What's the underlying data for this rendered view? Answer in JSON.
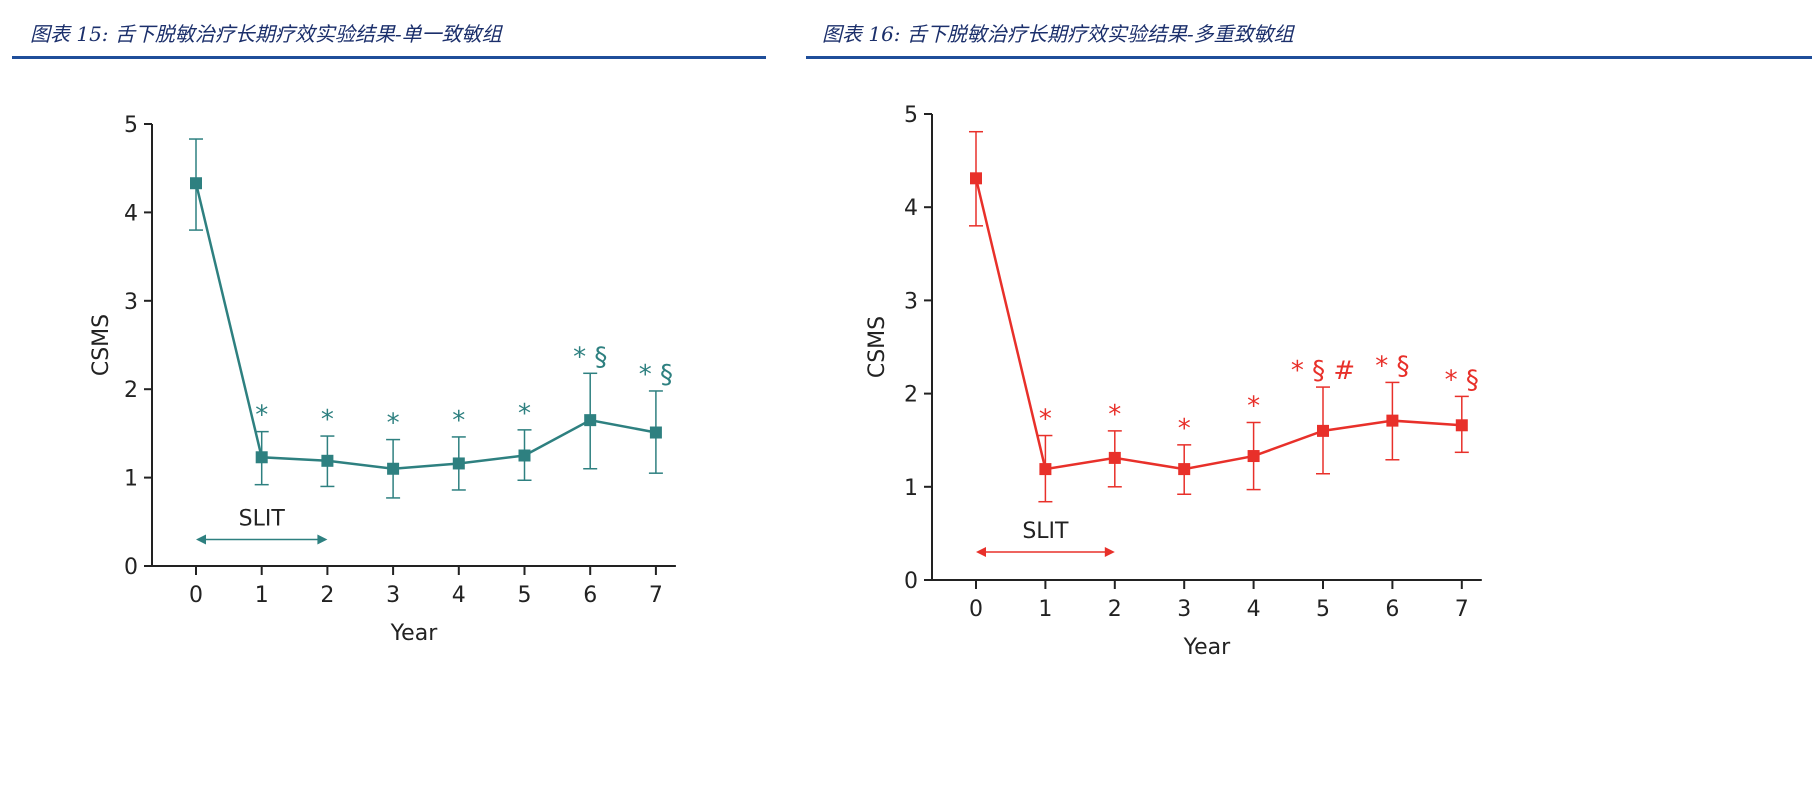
{
  "titles": [
    "图表 15:  舌下脱敏治疗长期疗效实验结果-单一致敏组",
    "图表 16:  舌下脱敏治疗长期疗效实验结果-多重致敏组"
  ],
  "chart_data": [
    {
      "type": "line",
      "title": "",
      "xlabel": "Year",
      "ylabel": "CSMS",
      "x": [
        0,
        1,
        2,
        3,
        4,
        5,
        6,
        7
      ],
      "xlim": [
        0,
        7
      ],
      "ylim": [
        0,
        5
      ],
      "yticks": [
        0,
        1,
        2,
        3,
        4,
        5
      ],
      "color": "#2e8080",
      "series": [
        {
          "values": [
            4.33,
            1.23,
            1.19,
            1.1,
            1.16,
            1.25,
            1.65,
            1.51
          ],
          "err_low": [
            3.8,
            0.92,
            0.9,
            0.77,
            0.86,
            0.97,
            1.1,
            1.05
          ],
          "err_high": [
            4.83,
            1.52,
            1.47,
            1.43,
            1.46,
            1.54,
            2.18,
            1.98
          ]
        }
      ],
      "annotations": [
        "",
        "*",
        "*",
        "*",
        "*",
        "*",
        "* §",
        "* §"
      ],
      "bracket": {
        "label": "SLIT",
        "from": 0,
        "to": 2
      },
      "grid": false
    },
    {
      "type": "line",
      "title": "",
      "xlabel": "Year",
      "ylabel": "CSMS",
      "x": [
        0,
        1,
        2,
        3,
        4,
        5,
        6,
        7
      ],
      "xlim": [
        0,
        7
      ],
      "ylim": [
        0,
        5
      ],
      "yticks": [
        0,
        1,
        2,
        3,
        4,
        5
      ],
      "color": "#e8302a",
      "series": [
        {
          "values": [
            4.31,
            1.19,
            1.31,
            1.19,
            1.33,
            1.6,
            1.71,
            1.66
          ],
          "err_low": [
            3.8,
            0.84,
            1.0,
            0.92,
            0.97,
            1.14,
            1.29,
            1.37
          ],
          "err_high": [
            4.81,
            1.55,
            1.6,
            1.45,
            1.69,
            2.07,
            2.12,
            1.97
          ]
        }
      ],
      "annotations": [
        "",
        "*",
        "*",
        "*",
        "*",
        "* § #",
        "* §",
        "* §"
      ],
      "bracket": {
        "label": "SLIT",
        "from": 0,
        "to": 2
      },
      "grid": false
    }
  ]
}
